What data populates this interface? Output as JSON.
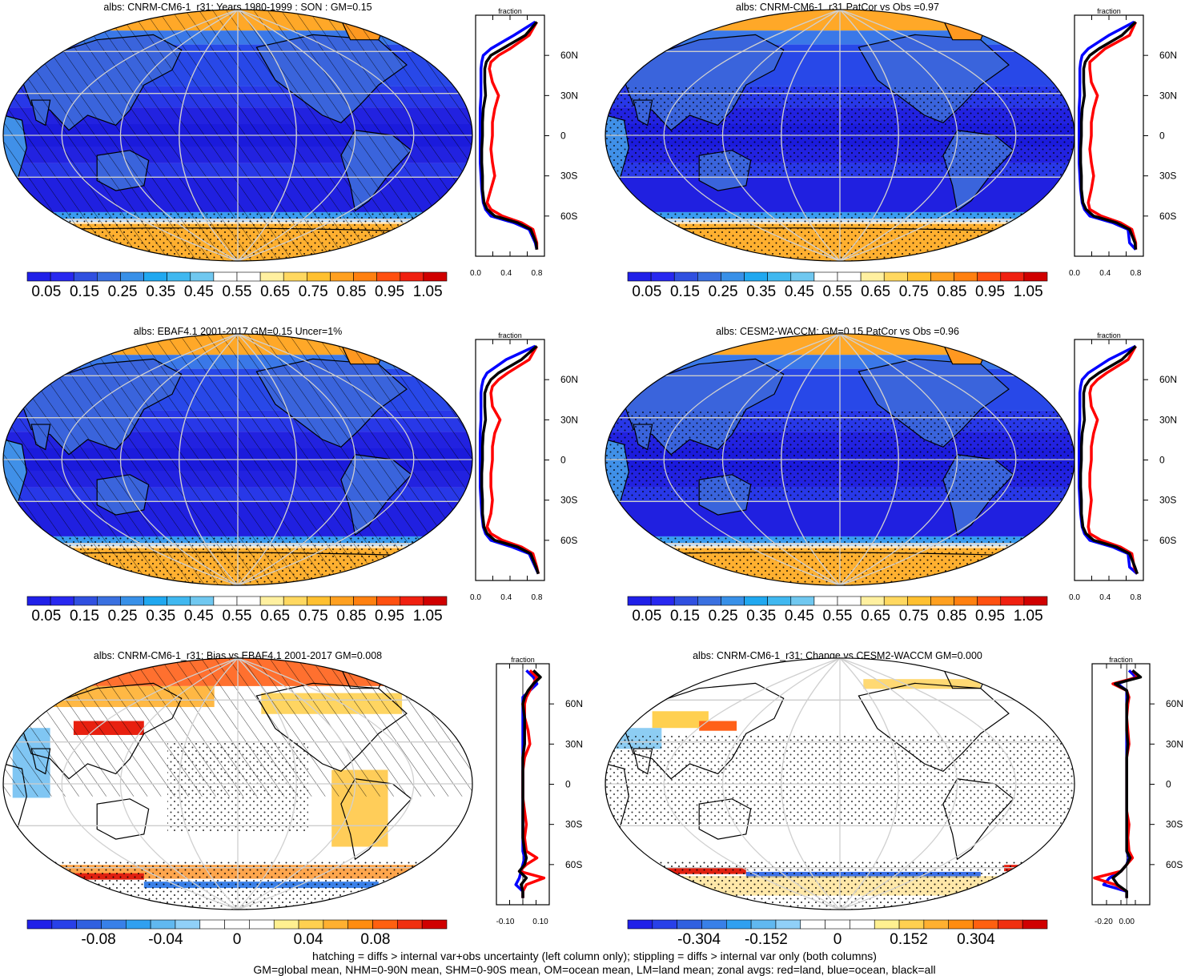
{
  "footer": {
    "line1": "hatching = diffs > internal var+obs uncertainty (left column only); stippling = diffs > internal var only (both columns)",
    "line2": "GM=global mean, NHM=0-90N mean, SHM=0-90S mean, OM=ocean mean, LM=land mean; zonal avgs: red=land, blue=ocean, black=all"
  },
  "lat_labels": [
    "60N",
    "30N",
    "0",
    "30S",
    "60S"
  ],
  "zonal_axis_title": "fraction",
  "colors": {
    "land": "#ff0000",
    "ocean": "#0000ff",
    "all": "#000000"
  },
  "chart_data": [
    {
      "type": "heatmap",
      "title": "albs: CNRM-CM6-1_r31: Years 1980-1999 : SON : GM=0.15",
      "kind": "absolute",
      "colorbar": {
        "labels": [
          "0.05",
          "0.15",
          "0.25",
          "0.35",
          "0.45",
          "0.55",
          "0.65",
          "0.75",
          "0.85",
          "0.95",
          "1.05"
        ],
        "range": [
          0,
          1.1
        ]
      },
      "zonal": {
        "xlim": [
          0,
          0.9
        ],
        "xticks": [
          "0.0",
          "0.4",
          "0.8"
        ],
        "lat": [
          85,
          75,
          65,
          60,
          55,
          50,
          40,
          30,
          20,
          10,
          0,
          -10,
          -20,
          -30,
          -40,
          -50,
          -55,
          -60,
          -65,
          -70,
          -80,
          -85
        ],
        "land": [
          0.8,
          0.7,
          0.45,
          0.3,
          0.2,
          0.18,
          0.22,
          0.3,
          0.25,
          0.22,
          0.22,
          0.2,
          0.22,
          0.25,
          0.2,
          0.15,
          0.2,
          0.35,
          0.6,
          0.75,
          0.8,
          0.8
        ],
        "ocean": [
          0.78,
          0.5,
          0.2,
          0.1,
          0.08,
          0.07,
          0.07,
          0.07,
          0.06,
          0.06,
          0.06,
          0.06,
          0.06,
          0.07,
          0.08,
          0.1,
          0.13,
          0.2,
          0.5,
          0.7,
          0.78,
          0.8
        ],
        "all": [
          0.8,
          0.65,
          0.35,
          0.2,
          0.14,
          0.12,
          0.12,
          0.13,
          0.1,
          0.09,
          0.09,
          0.08,
          0.08,
          0.09,
          0.09,
          0.11,
          0.15,
          0.25,
          0.55,
          0.72,
          0.79,
          0.8
        ]
      }
    },
    {
      "type": "heatmap",
      "title": "albs: CNRM-CM6-1_r31 PatCor vs Obs =0.97",
      "kind": "absolute",
      "colorbar": {
        "labels": [
          "0.05",
          "0.15",
          "0.25",
          "0.35",
          "0.45",
          "0.55",
          "0.65",
          "0.75",
          "0.85",
          "0.95",
          "1.05"
        ],
        "range": [
          0,
          1.1
        ]
      },
      "zonal": {
        "xlim": [
          0,
          0.9
        ],
        "xticks": [
          "0.0",
          "0.4",
          "0.8"
        ],
        "lat": [
          85,
          75,
          65,
          60,
          55,
          50,
          40,
          30,
          20,
          10,
          0,
          -10,
          -20,
          -30,
          -40,
          -50,
          -55,
          -60,
          -65,
          -70,
          -80,
          -85
        ],
        "land": [
          0.8,
          0.72,
          0.4,
          0.3,
          0.2,
          0.2,
          0.22,
          0.3,
          0.25,
          0.22,
          0.22,
          0.2,
          0.22,
          0.25,
          0.22,
          0.18,
          0.2,
          0.35,
          0.6,
          0.75,
          0.8,
          0.8
        ],
        "ocean": [
          0.78,
          0.45,
          0.18,
          0.1,
          0.08,
          0.07,
          0.07,
          0.07,
          0.06,
          0.06,
          0.06,
          0.06,
          0.06,
          0.07,
          0.08,
          0.1,
          0.13,
          0.2,
          0.5,
          0.7,
          0.72,
          0.8
        ],
        "all": [
          0.8,
          0.62,
          0.32,
          0.2,
          0.14,
          0.12,
          0.12,
          0.13,
          0.1,
          0.09,
          0.09,
          0.08,
          0.08,
          0.09,
          0.09,
          0.11,
          0.15,
          0.25,
          0.55,
          0.72,
          0.79,
          0.8
        ]
      }
    },
    {
      "type": "heatmap",
      "title": "albs: EBAF4.1 2001-2017 GM=0.15 Uncer=1%",
      "kind": "absolute",
      "colorbar": {
        "labels": [
          "0.05",
          "0.15",
          "0.25",
          "0.35",
          "0.45",
          "0.55",
          "0.65",
          "0.75",
          "0.85",
          "0.95",
          "1.05"
        ],
        "range": [
          0,
          1.1
        ]
      },
      "zonal": {
        "xlim": [
          0,
          0.9
        ],
        "xticks": [
          "0.0",
          "0.4",
          "0.8"
        ],
        "lat": [
          85,
          75,
          65,
          60,
          55,
          50,
          40,
          30,
          20,
          10,
          0,
          -10,
          -20,
          -30,
          -40,
          -50,
          -55,
          -60,
          -65,
          -70,
          -80,
          -85
        ],
        "land": [
          0.8,
          0.7,
          0.42,
          0.3,
          0.22,
          0.2,
          0.22,
          0.32,
          0.25,
          0.22,
          0.22,
          0.2,
          0.2,
          0.22,
          0.2,
          0.15,
          0.2,
          0.35,
          0.6,
          0.75,
          0.8,
          0.82
        ],
        "ocean": [
          0.78,
          0.4,
          0.15,
          0.1,
          0.08,
          0.07,
          0.07,
          0.07,
          0.06,
          0.06,
          0.06,
          0.06,
          0.06,
          0.07,
          0.08,
          0.1,
          0.13,
          0.2,
          0.48,
          0.7,
          0.78,
          0.82
        ],
        "all": [
          0.8,
          0.6,
          0.3,
          0.2,
          0.15,
          0.12,
          0.12,
          0.13,
          0.1,
          0.09,
          0.09,
          0.08,
          0.08,
          0.09,
          0.09,
          0.11,
          0.15,
          0.25,
          0.55,
          0.72,
          0.79,
          0.82
        ]
      }
    },
    {
      "type": "heatmap",
      "title": "albs: CESM2-WACCM: GM=0.15 PatCor vs Obs =0.96",
      "kind": "absolute",
      "colorbar": {
        "labels": [
          "0.05",
          "0.15",
          "0.25",
          "0.35",
          "0.45",
          "0.55",
          "0.65",
          "0.75",
          "0.85",
          "0.95",
          "1.05"
        ],
        "range": [
          0,
          1.1
        ]
      },
      "zonal": {
        "xlim": [
          0,
          0.9
        ],
        "xticks": [
          "0.0",
          "0.4",
          "0.8"
        ],
        "lat": [
          85,
          75,
          65,
          60,
          55,
          50,
          40,
          30,
          20,
          10,
          0,
          -10,
          -20,
          -30,
          -40,
          -50,
          -55,
          -60,
          -65,
          -70,
          -80,
          -85
        ],
        "land": [
          0.8,
          0.7,
          0.42,
          0.3,
          0.22,
          0.2,
          0.22,
          0.3,
          0.25,
          0.22,
          0.22,
          0.2,
          0.2,
          0.22,
          0.2,
          0.18,
          0.2,
          0.35,
          0.6,
          0.75,
          0.78,
          0.82
        ],
        "ocean": [
          0.8,
          0.45,
          0.18,
          0.1,
          0.08,
          0.07,
          0.07,
          0.07,
          0.06,
          0.06,
          0.06,
          0.06,
          0.06,
          0.07,
          0.08,
          0.1,
          0.13,
          0.2,
          0.5,
          0.7,
          0.72,
          0.82
        ],
        "all": [
          0.8,
          0.62,
          0.32,
          0.2,
          0.14,
          0.12,
          0.12,
          0.13,
          0.1,
          0.09,
          0.09,
          0.08,
          0.08,
          0.09,
          0.09,
          0.11,
          0.15,
          0.25,
          0.55,
          0.72,
          0.79,
          0.82
        ]
      }
    },
    {
      "type": "heatmap",
      "title": "albs: CNRM-CM6-1_r31: Bias vs EBAF4.1 2001-2017  GM=0.008",
      "kind": "diff",
      "colorbar": {
        "labels": [
          "-0.08",
          "-0.04",
          "0",
          "0.04",
          "0.08"
        ],
        "range": [
          -0.11,
          0.11
        ]
      },
      "zonal": {
        "xlim": [
          -0.15,
          0.15
        ],
        "xticks": [
          "-0.10",
          "0.10"
        ],
        "lat": [
          85,
          80,
          75,
          70,
          65,
          60,
          50,
          40,
          30,
          20,
          10,
          0,
          -10,
          -20,
          -30,
          -40,
          -50,
          -55,
          -60,
          -65,
          -70,
          -75,
          -80,
          -85
        ],
        "land": [
          0.04,
          0.08,
          0.06,
          0.04,
          0.02,
          0.01,
          0.01,
          0.03,
          0.04,
          0.01,
          0.0,
          0.0,
          0.0,
          0.01,
          0.02,
          0.01,
          0.02,
          0.08,
          0.02,
          -0.02,
          0.12,
          0.02,
          0.0,
          0.0
        ],
        "ocean": [
          0.02,
          0.06,
          0.08,
          0.04,
          0.0,
          0.0,
          0.0,
          0.0,
          0.0,
          0.0,
          0.0,
          0.0,
          0.0,
          0.0,
          0.0,
          0.0,
          0.0,
          0.01,
          0.0,
          -0.01,
          -0.02,
          -0.04,
          0.0,
          0.0
        ],
        "all": [
          0.06,
          0.1,
          0.06,
          0.03,
          0.01,
          0.0,
          0.01,
          0.01,
          0.01,
          0.0,
          0.0,
          0.0,
          0.0,
          0.0,
          0.0,
          0.0,
          0.01,
          0.02,
          0.01,
          -0.02,
          0.02,
          -0.01,
          0.0,
          0.0
        ]
      }
    },
    {
      "type": "heatmap",
      "title": "albs: CNRM-CM6-1_r31: Change vs CESM2-WACCM GM=0.000",
      "kind": "diff",
      "colorbar": {
        "labels": [
          "-0.304",
          "-0.152",
          "0",
          "0.152",
          "0.304"
        ],
        "range": [
          -0.4,
          0.4
        ]
      },
      "zonal": {
        "xlim": [
          -0.3,
          0.2
        ],
        "xticks": [
          "-0.20",
          "0.00"
        ],
        "lat": [
          85,
          80,
          75,
          70,
          65,
          60,
          50,
          40,
          30,
          20,
          10,
          0,
          -10,
          -20,
          -30,
          -40,
          -50,
          -55,
          -60,
          -65,
          -70,
          -75,
          -80,
          -85
        ],
        "land": [
          0.05,
          0.1,
          -0.12,
          0.0,
          0.02,
          0.01,
          0.0,
          0.01,
          0.02,
          0.0,
          0.0,
          0.0,
          0.0,
          0.0,
          0.02,
          0.01,
          0.02,
          0.05,
          0.0,
          -0.05,
          -0.28,
          -0.1,
          0.0,
          0.0
        ],
        "ocean": [
          0.02,
          0.08,
          -0.08,
          0.0,
          0.0,
          0.0,
          0.0,
          0.0,
          0.0,
          0.0,
          0.0,
          0.0,
          0.0,
          0.0,
          0.0,
          0.0,
          0.0,
          0.02,
          0.0,
          -0.05,
          -0.15,
          -0.2,
          0.0,
          0.0
        ],
        "all": [
          0.05,
          0.12,
          -0.1,
          0.0,
          0.01,
          0.0,
          0.0,
          0.0,
          0.01,
          0.0,
          0.0,
          0.0,
          0.0,
          0.0,
          0.0,
          0.0,
          0.0,
          0.03,
          0.0,
          -0.05,
          -0.12,
          -0.08,
          0.0,
          0.0
        ]
      }
    }
  ]
}
